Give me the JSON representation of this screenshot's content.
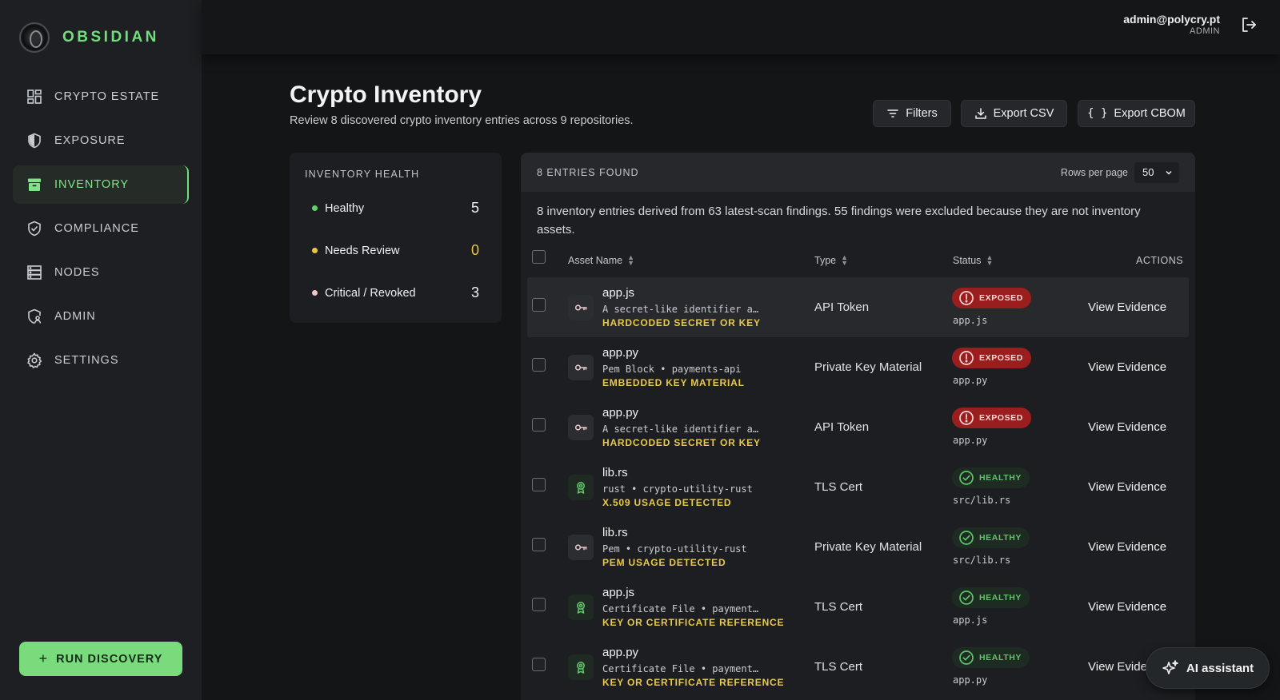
{
  "app": {
    "name": "OBSIDIAN"
  },
  "nav": [
    {
      "label": "CRYPTO ESTATE",
      "icon": "grid-icon",
      "active": false
    },
    {
      "label": "EXPOSURE",
      "icon": "shield-half-icon",
      "active": false
    },
    {
      "label": "INVENTORY",
      "icon": "archive-icon",
      "active": true
    },
    {
      "label": "COMPLIANCE",
      "icon": "shield-check-icon",
      "active": false
    },
    {
      "label": "NODES",
      "icon": "server-icon",
      "active": false
    },
    {
      "label": "ADMIN",
      "icon": "shield-user-icon",
      "active": false
    },
    {
      "label": "SETTINGS",
      "icon": "gear-icon",
      "active": false
    }
  ],
  "run_discovery": {
    "label": "RUN DISCOVERY"
  },
  "user": {
    "email": "admin@polycry.pt",
    "role": "ADMIN"
  },
  "header": {
    "title": "Crypto Inventory",
    "subtitle": "Review 8 discovered crypto inventory entries across 9 repositories.",
    "filters": "Filters",
    "export_csv": "Export CSV",
    "export_cbom": "Export CBOM"
  },
  "health": {
    "title": "INVENTORY HEALTH",
    "items": [
      {
        "label": "Healthy",
        "count": "5",
        "color": "#5fd36b"
      },
      {
        "label": "Needs Review",
        "count": "0",
        "color": "#e8c547"
      },
      {
        "label": "Critical / Revoked",
        "count": "3",
        "color": "#f3c5c5"
      }
    ]
  },
  "table": {
    "entries_found": "8 ENTRIES FOUND",
    "rows_per_page_label": "Rows per page",
    "rows_per_page_value": "50",
    "description": "8 inventory entries derived from 63 latest-scan findings. 55 findings were excluded because they are not inventory assets.",
    "columns": {
      "asset": "Asset Name",
      "type": "Type",
      "status": "Status",
      "actions": "ACTIONS"
    },
    "rows": [
      {
        "name": "app.js",
        "detail": "A secret-like identifier a…",
        "tag": "HARDCODED SECRET OR KEY",
        "type": "API Token",
        "status": "EXPOSED",
        "path": "app.js",
        "action": "View Evidence",
        "icon": "key-icon"
      },
      {
        "name": "app.py",
        "detail": "Pem Block • payments-api",
        "tag": "EMBEDDED KEY MATERIAL",
        "type": "Private Key Material",
        "status": "EXPOSED",
        "path": "app.py",
        "action": "View Evidence",
        "icon": "key-icon"
      },
      {
        "name": "app.py",
        "detail": "A secret-like identifier a…",
        "tag": "HARDCODED SECRET OR KEY",
        "type": "API Token",
        "status": "EXPOSED",
        "path": "app.py",
        "action": "View Evidence",
        "icon": "key-icon"
      },
      {
        "name": "lib.rs",
        "detail": "rust • crypto-utility-rust",
        "tag": "X.509 USAGE DETECTED",
        "type": "TLS Cert",
        "status": "HEALTHY",
        "path": "src/lib.rs",
        "action": "View Evidence",
        "icon": "certificate-icon"
      },
      {
        "name": "lib.rs",
        "detail": "Pem • crypto-utility-rust",
        "tag": "PEM USAGE DETECTED",
        "type": "Private Key Material",
        "status": "HEALTHY",
        "path": "src/lib.rs",
        "action": "View Evidence",
        "icon": "key-icon"
      },
      {
        "name": "app.js",
        "detail": "Certificate File • payment…",
        "tag": "KEY OR CERTIFICATE REFERENCE",
        "type": "TLS Cert",
        "status": "HEALTHY",
        "path": "app.js",
        "action": "View Evidence",
        "icon": "certificate-icon"
      },
      {
        "name": "app.py",
        "detail": "Certificate File • payment…",
        "tag": "KEY OR CERTIFICATE REFERENCE",
        "type": "TLS Cert",
        "status": "HEALTHY",
        "path": "app.py",
        "action": "View Evide",
        "icon": "certificate-icon"
      }
    ]
  },
  "ai_assistant": {
    "label": "AI assistant"
  }
}
